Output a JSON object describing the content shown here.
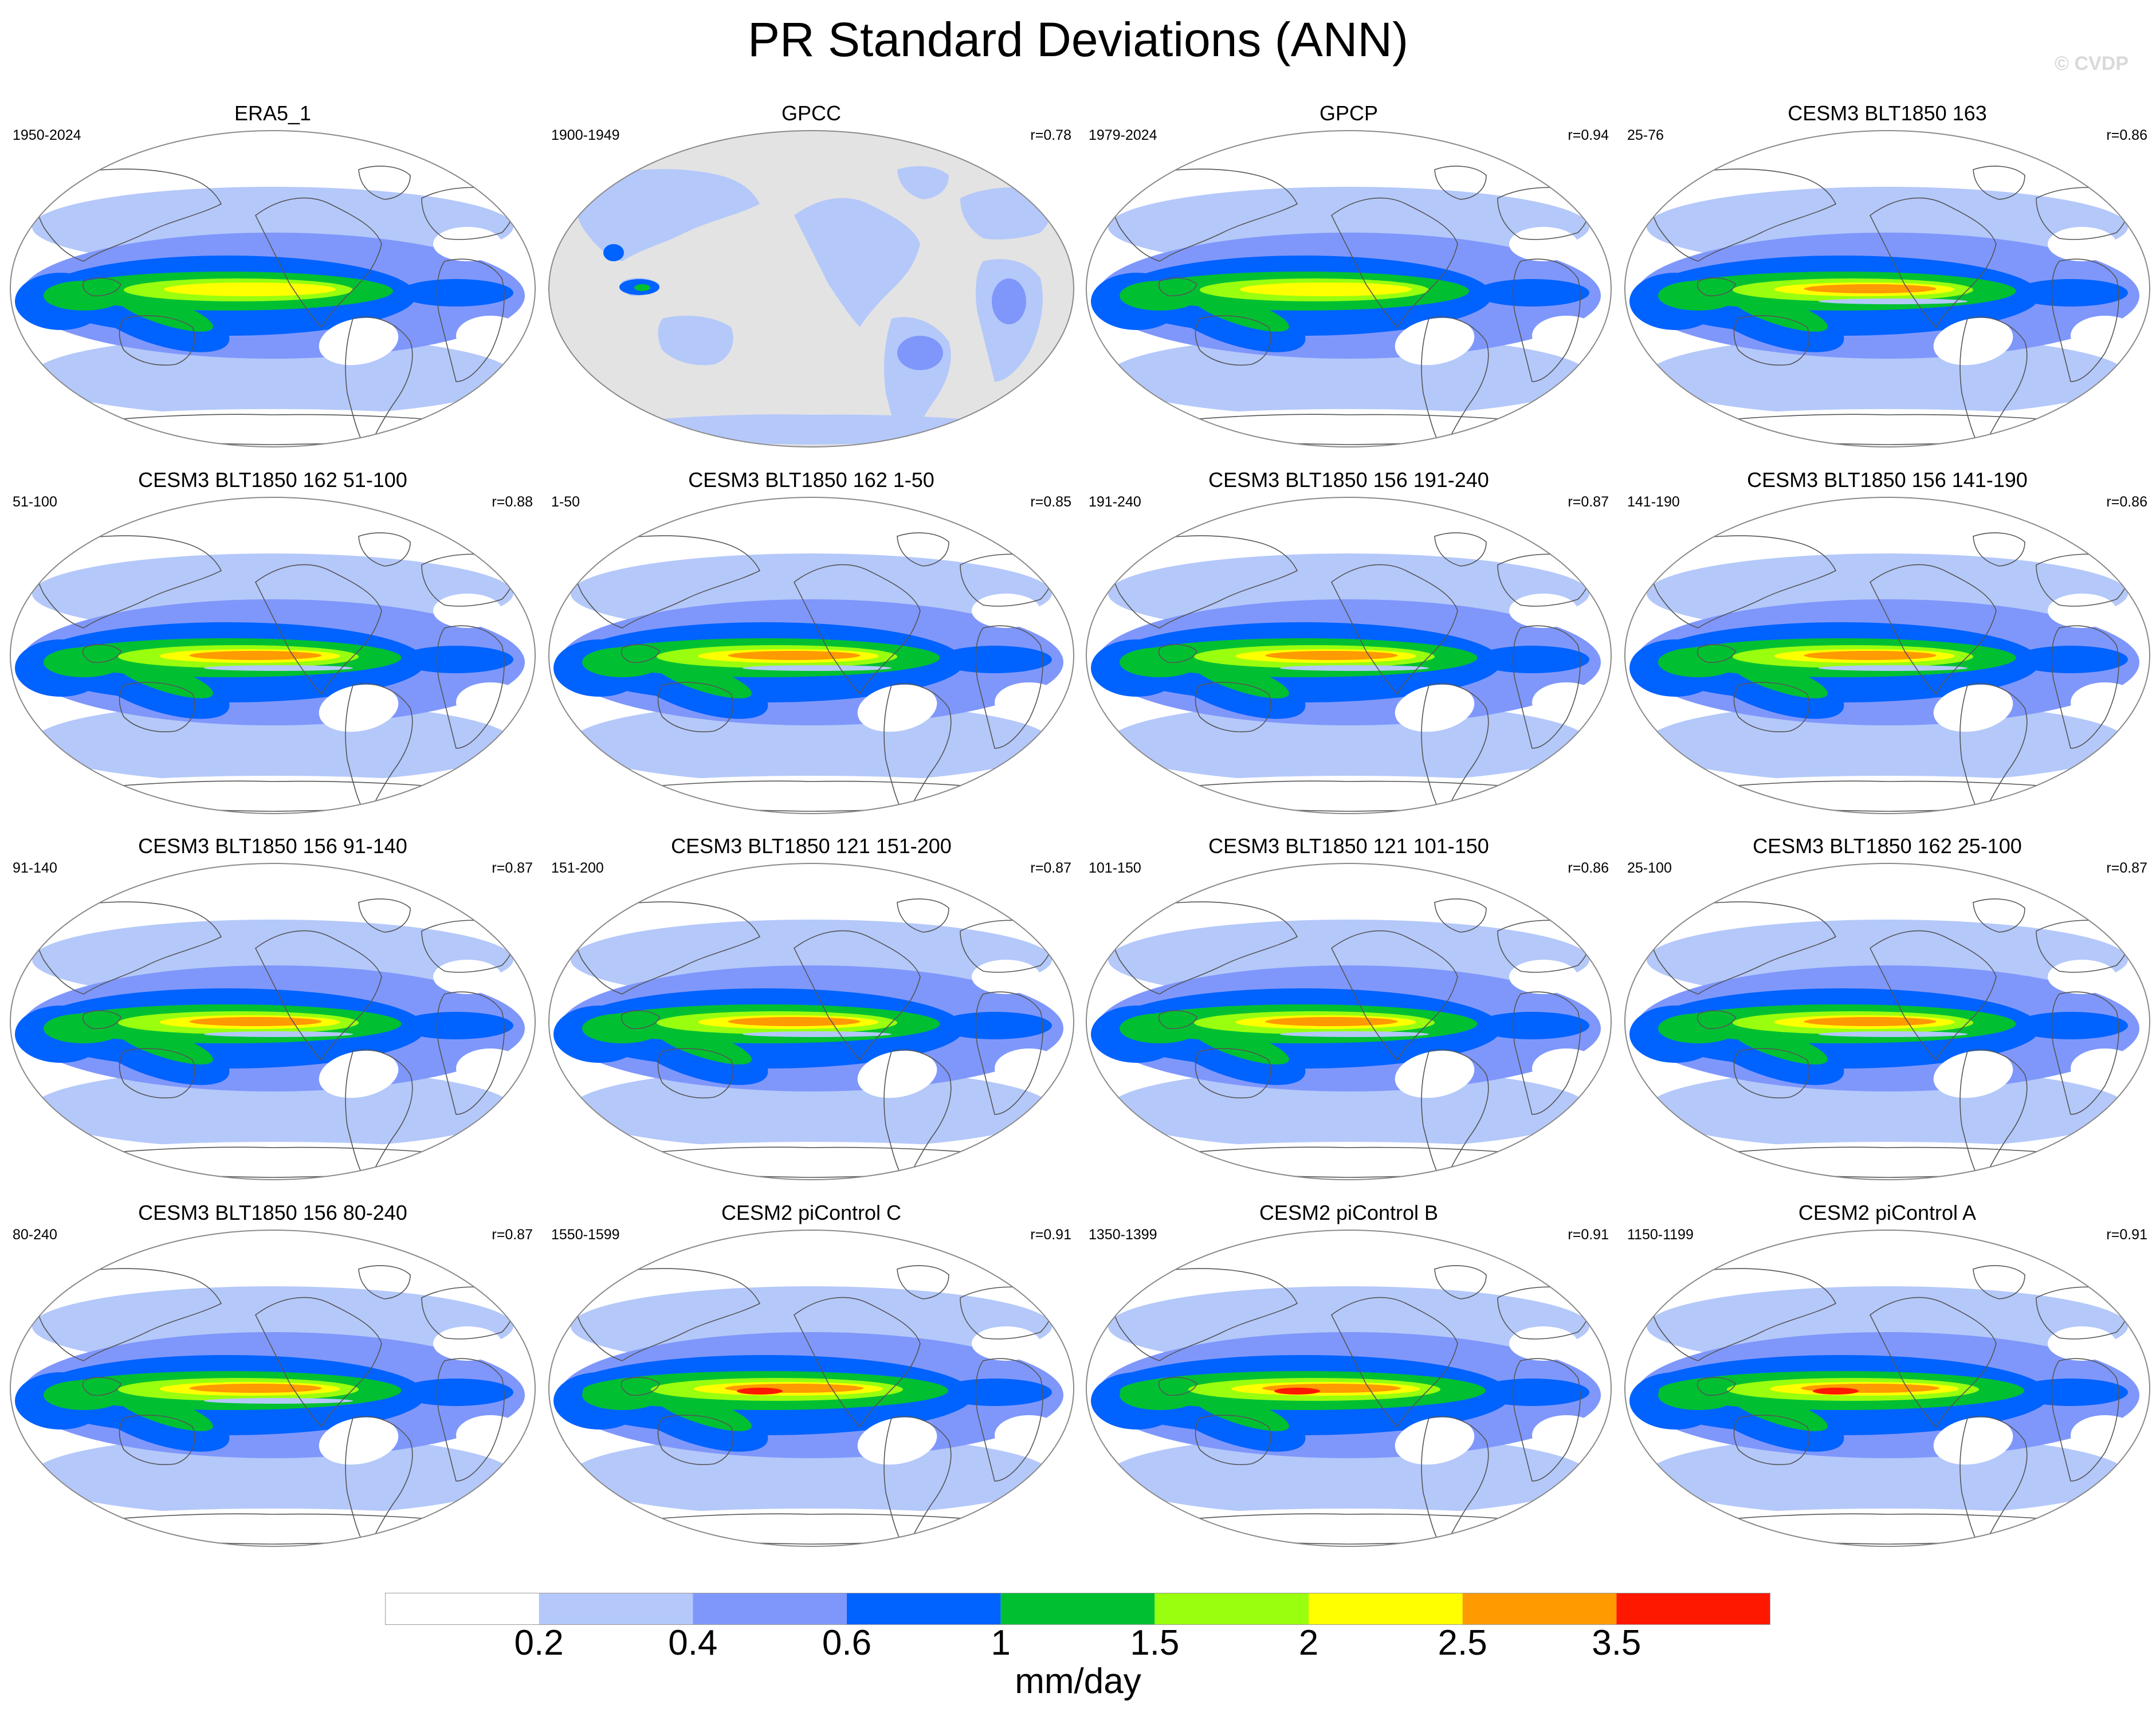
{
  "page": {
    "title": "PR Standard Deviations (ANN)",
    "watermark": "© CVDP",
    "colors": {
      "ocean_land_outline": "#555555",
      "missing": "#e3e3e3"
    }
  },
  "chart_data": {
    "type": "heatmap",
    "projection": "Robinson global, Pacific-centered",
    "variable": "PR Standard Deviations (ANN)",
    "panels": [
      {
        "title": "ERA5_1",
        "years": "1950-2024",
        "r": "",
        "style": "obs"
      },
      {
        "title": "GPCC",
        "years": "1900-1949",
        "r": "r=0.78",
        "style": "gpcc"
      },
      {
        "title": "GPCP",
        "years": "1979-2024",
        "r": "r=0.94",
        "style": "obs"
      },
      {
        "title": "CESM3 BLT1850 163",
        "years": "25-76",
        "r": "r=0.86",
        "style": "model"
      },
      {
        "title": "CESM3 BLT1850 162 51-100",
        "years": "51-100",
        "r": "r=0.88",
        "style": "model"
      },
      {
        "title": "CESM3 BLT1850 162 1-50",
        "years": "1-50",
        "r": "r=0.85",
        "style": "model"
      },
      {
        "title": "CESM3 BLT1850 156 191-240",
        "years": "191-240",
        "r": "r=0.87",
        "style": "model"
      },
      {
        "title": "CESM3 BLT1850 156 141-190",
        "years": "141-190",
        "r": "r=0.86",
        "style": "model"
      },
      {
        "title": "CESM3 BLT1850 156 91-140",
        "years": "91-140",
        "r": "r=0.87",
        "style": "model"
      },
      {
        "title": "CESM3 BLT1850 121 151-200",
        "years": "151-200",
        "r": "r=0.87",
        "style": "model"
      },
      {
        "title": "CESM3 BLT1850 121 101-150",
        "years": "101-150",
        "r": "r=0.86",
        "style": "model"
      },
      {
        "title": "CESM3 BLT1850 162 25-100",
        "years": "25-100",
        "r": "r=0.87",
        "style": "model"
      },
      {
        "title": "CESM3 BLT1850 156 80-240",
        "years": "80-240",
        "r": "r=0.87",
        "style": "model"
      },
      {
        "title": "CESM2 piControl C",
        "years": "1550-1599",
        "r": "r=0.91",
        "style": "cesm2"
      },
      {
        "title": "CESM2 piControl B",
        "years": "1350-1399",
        "r": "r=0.91",
        "style": "cesm2"
      },
      {
        "title": "CESM2 piControl A",
        "years": "1150-1199",
        "r": "r=0.91",
        "style": "cesm2"
      }
    ],
    "colorbar": {
      "colors": [
        "#ffffff",
        "#b4c8fa",
        "#7f97fb",
        "#0062ff",
        "#00c032",
        "#99ff0e",
        "#ffff00",
        "#ff9a00",
        "#ff1800"
      ],
      "labels": [
        "0.2",
        "0.4",
        "0.6",
        "1",
        "1.5",
        "2",
        "2.5",
        "3.5"
      ],
      "units": "mm/day"
    }
  }
}
